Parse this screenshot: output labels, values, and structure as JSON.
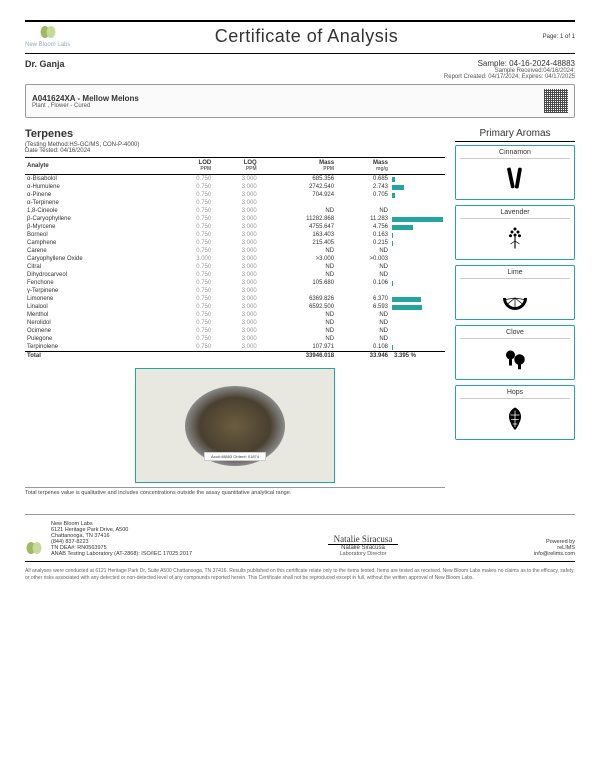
{
  "header": {
    "company": "New Bloom Labs",
    "title": "Certificate of Analysis",
    "page": "Page: 1 of 1"
  },
  "client": {
    "name": "Dr. Ganja",
    "sample_id": "Sample: 04-16-2024-48883",
    "received": "Sample Received:04/16/2024;",
    "report": "Report Created: 04/17/2024; Expires: 04/17/2025"
  },
  "product": {
    "code": "A041624XA - Mellow Melons",
    "type": "Plant , Flower - Cured"
  },
  "terpenes": {
    "title": "Terpenes",
    "method": "(Testing Method:HS-GC/MS, CON-P-4000)",
    "date": "Date Tested: 04/16/2024",
    "headers": {
      "analyte": "Analyte",
      "lod": "LOD",
      "loq": "LOQ",
      "mass_ppm": "Mass",
      "mass_mgg": "Mass"
    },
    "units": {
      "lod": "PPM",
      "loq": "PPM",
      "mass_ppm": "PPM",
      "mass_mgg": "mg/g"
    },
    "rows": [
      {
        "analyte": "α-Bisabolol",
        "lod": "0.750",
        "loq": "3.000",
        "mass_ppm": "685.356",
        "mass_mgg": "0.685",
        "bar": 6
      },
      {
        "analyte": "α-Humulene",
        "lod": "0.750",
        "loq": "3.000",
        "mass_ppm": "2742.540",
        "mass_mgg": "2.743",
        "bar": 24
      },
      {
        "analyte": "α-Pinene",
        "lod": "0.750",
        "loq": "3.000",
        "mass_ppm": "704.924",
        "mass_mgg": "0.705",
        "bar": 6
      },
      {
        "analyte": "α-Terpinene",
        "lod": "0.750",
        "loq": "3.000",
        "mass_ppm": "<LOQ",
        "mass_mgg": "<LOQ",
        "bar": 0
      },
      {
        "analyte": "1,8-Cineole",
        "lod": "0.750",
        "loq": "3.000",
        "mass_ppm": "ND",
        "mass_mgg": "ND",
        "bar": 0
      },
      {
        "analyte": "β-Caryophyllene",
        "lod": "0.750",
        "loq": "3.000",
        "mass_ppm": "11282.868",
        "mass_mgg": "11.283",
        "bar": 100
      },
      {
        "analyte": "β-Myrcene",
        "lod": "0.750",
        "loq": "3.000",
        "mass_ppm": "4755.647",
        "mass_mgg": "4.756",
        "bar": 42
      },
      {
        "analyte": "Borneol",
        "lod": "0.750",
        "loq": "3.000",
        "mass_ppm": "163.403",
        "mass_mgg": "0.163",
        "bar": 2
      },
      {
        "analyte": "Camphene",
        "lod": "0.750",
        "loq": "3.000",
        "mass_ppm": "215.405",
        "mass_mgg": "0.215",
        "bar": 2
      },
      {
        "analyte": "Carene",
        "lod": "0.750",
        "loq": "3.000",
        "mass_ppm": "ND",
        "mass_mgg": "ND",
        "bar": 0
      },
      {
        "analyte": "Caryophyllene Oxide",
        "lod": "3.000",
        "loq": "3.000",
        "mass_ppm": ">3.000",
        "mass_mgg": ">0.003",
        "bar": 0
      },
      {
        "analyte": "Citral",
        "lod": "0.750",
        "loq": "3.000",
        "mass_ppm": "ND",
        "mass_mgg": "ND",
        "bar": 0
      },
      {
        "analyte": "Dihydrocarveol",
        "lod": "0.750",
        "loq": "3.000",
        "mass_ppm": "ND",
        "mass_mgg": "ND",
        "bar": 0
      },
      {
        "analyte": "Fenchone",
        "lod": "0.750",
        "loq": "3.000",
        "mass_ppm": "105.680",
        "mass_mgg": "0.106",
        "bar": 1
      },
      {
        "analyte": "γ-Terpinene",
        "lod": "0.750",
        "loq": "3.000",
        "mass_ppm": "<LOQ",
        "mass_mgg": "<LOQ",
        "bar": 0
      },
      {
        "analyte": "Limonene",
        "lod": "0.750",
        "loq": "3.000",
        "mass_ppm": "6369.826",
        "mass_mgg": "6.370",
        "bar": 56
      },
      {
        "analyte": "Linalool",
        "lod": "0.750",
        "loq": "3.000",
        "mass_ppm": "6592.500",
        "mass_mgg": "6.593",
        "bar": 58
      },
      {
        "analyte": "Menthol",
        "lod": "0.750",
        "loq": "3.000",
        "mass_ppm": "ND",
        "mass_mgg": "ND",
        "bar": 0
      },
      {
        "analyte": "Nerolidol",
        "lod": "0.750",
        "loq": "3.000",
        "mass_ppm": "ND",
        "mass_mgg": "ND",
        "bar": 0
      },
      {
        "analyte": "Ocimene",
        "lod": "0.750",
        "loq": "3.000",
        "mass_ppm": "ND",
        "mass_mgg": "ND",
        "bar": 0
      },
      {
        "analyte": "Pulegone",
        "lod": "0.750",
        "loq": "3.000",
        "mass_ppm": "ND",
        "mass_mgg": "ND",
        "bar": 0
      },
      {
        "analyte": "Terpinolene",
        "lod": "0.750",
        "loq": "3.000",
        "mass_ppm": "107.971",
        "mass_mgg": "0.108",
        "bar": 1
      }
    ],
    "total": {
      "label": "Total",
      "mass_ppm": "33946.018",
      "mass_mgg": "33.946",
      "percent": "3.395 %"
    }
  },
  "aromas": {
    "title": "Primary Aromas",
    "items": [
      "Cinnamon",
      "Lavender",
      "Lime",
      "Clove",
      "Hops"
    ]
  },
  "photo_label": "Acc#:48883  Order#: 01874",
  "footnote": "Total terpenes value is qualitative and includes concentrations outside the assay quantitative analytical range.",
  "footer": {
    "address": [
      "New Bloom Labs",
      "6121 Heritage Park Drive, A500",
      "Chattanooga, TN 37416",
      "(844) 837-8223",
      "TN DEA#: RN0563975",
      "ANAB Testing Laboratory (AT-2868): ISO/IEC 17025:2017"
    ],
    "signature": "Natalie Siracusa",
    "sig_name": "Natalie Siracusa",
    "sig_title": "Laboratory Director",
    "powered": "Powered by",
    "relims": "reLIMS",
    "email": "info@relims.com"
  },
  "disclaimer": "All analyses were conducted at 6121 Heritage Park Dr, Suite A500 Chattanooga, TN 37416. Results published on this certificate relate only to the items tested. Items are tested as received. New Bloom Labs makes no claims as to the efficacy, safety, or other risks associated with any detected or non-detected level of any compounds reported herein. This Certificate shall not be reproduced except in full, without the written approval of New Bloom Labs.",
  "colors": {
    "accent": "#26a69a",
    "bar": "#26a69a"
  }
}
